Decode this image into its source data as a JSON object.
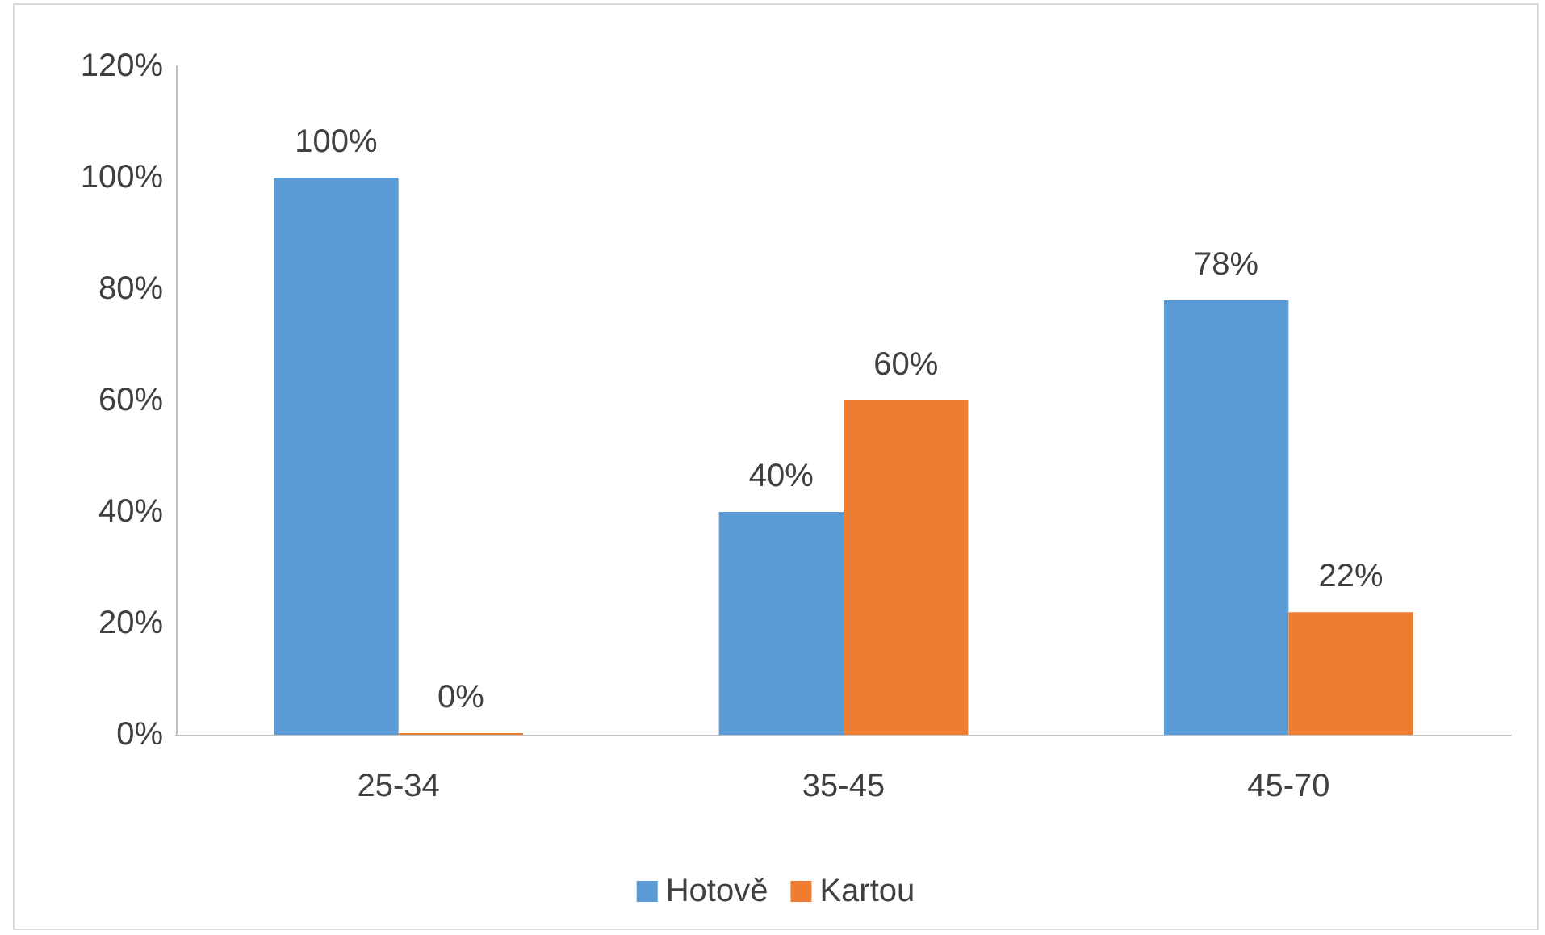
{
  "chart_data": {
    "type": "bar",
    "categories": [
      "25-34",
      "35-45",
      "45-70"
    ],
    "series": [
      {
        "name": "Hotově",
        "color": "#5b9bd5",
        "values": [
          100,
          40,
          78
        ],
        "value_labels": [
          "100%",
          "40%",
          "78%"
        ]
      },
      {
        "name": "Kartou",
        "color": "#ed7d31",
        "values": [
          0,
          60,
          22
        ],
        "value_labels": [
          "0%",
          "60%",
          "22%"
        ]
      }
    ],
    "ylim": [
      0,
      120
    ],
    "yticks": [
      {
        "value": 0,
        "label": "0%"
      },
      {
        "value": 20,
        "label": "20%"
      },
      {
        "value": 40,
        "label": "40%"
      },
      {
        "value": 60,
        "label": "60%"
      },
      {
        "value": 80,
        "label": "80%"
      },
      {
        "value": 100,
        "label": "100%"
      },
      {
        "value": 120,
        "label": "120%"
      }
    ],
    "grid": false,
    "legend": "bottom"
  }
}
